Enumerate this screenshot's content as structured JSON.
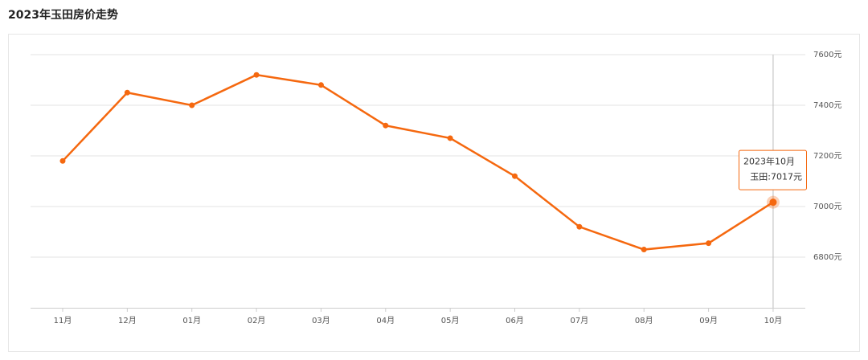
{
  "chart_data": {
    "type": "line",
    "title": "2023年玉田房价走势",
    "categories": [
      "11月",
      "12月",
      "01月",
      "02月",
      "03月",
      "04月",
      "05月",
      "06月",
      "07月",
      "08月",
      "09月",
      "10月"
    ],
    "series": [
      {
        "name": "玉田",
        "color": "#f5680f",
        "values": [
          7180,
          7450,
          7400,
          7520,
          7480,
          7320,
          7270,
          7120,
          6920,
          6830,
          6855,
          7017
        ]
      }
    ],
    "ylim": [
      6600,
      7600
    ],
    "yticks": [
      {
        "value": 6800,
        "label": "6800元"
      },
      {
        "value": 7000,
        "label": "7000元"
      },
      {
        "value": 7200,
        "label": "7200元"
      },
      {
        "value": 7400,
        "label": "7400元"
      },
      {
        "value": 7600,
        "label": "7600元"
      }
    ],
    "grid": true,
    "tooltip": {
      "title": "2023年10月",
      "text": "玉田:7017元"
    }
  }
}
